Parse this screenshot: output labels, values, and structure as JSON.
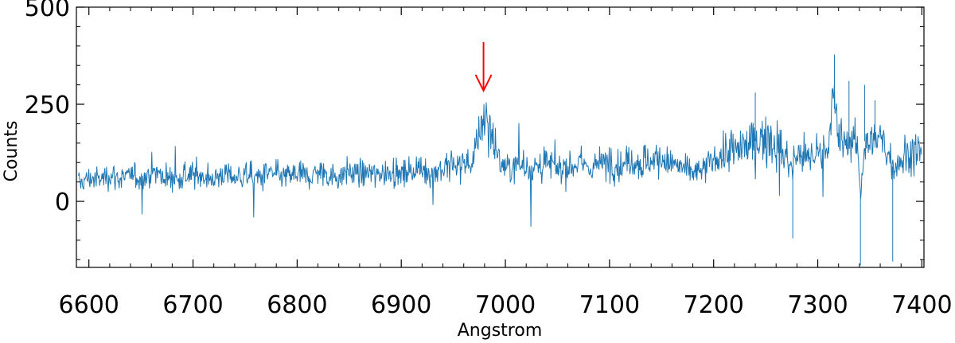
{
  "chart_data": {
    "type": "line",
    "title": "",
    "xlabel": "Angstrom",
    "ylabel": "Counts",
    "xlim": [
      6588,
      7402
    ],
    "ylim": [
      -170,
      500
    ],
    "x_ticks": [
      6600,
      6700,
      6800,
      6900,
      7000,
      7100,
      7200,
      7300,
      7400
    ],
    "x_tick_labels": [
      "6600",
      "6700",
      "6800",
      "6900",
      "7000",
      "7100",
      "7200",
      "7300",
      "7400"
    ],
    "y_ticks": [
      0,
      250,
      500
    ],
    "y_tick_labels": [
      "0",
      "250",
      "500"
    ],
    "grid": false,
    "ticks_direction": "in",
    "series": [
      {
        "color": "#1f77b4",
        "x": [
          6590,
          6600,
          6610,
          6620,
          6630,
          6640,
          6650,
          6660,
          6670,
          6680,
          6690,
          6700,
          6710,
          6720,
          6730,
          6740,
          6750,
          6760,
          6770,
          6780,
          6790,
          6800,
          6810,
          6820,
          6830,
          6840,
          6850,
          6860,
          6870,
          6880,
          6890,
          6900,
          6910,
          6920,
          6930,
          6940,
          6950,
          6960,
          6965,
          6970,
          6973,
          6976,
          6979,
          6982,
          6985,
          6988,
          6992,
          6996,
          7000,
          7010,
          7020,
          7030,
          7040,
          7050,
          7060,
          7070,
          7080,
          7090,
          7100,
          7110,
          7120,
          7130,
          7140,
          7150,
          7160,
          7170,
          7180,
          7190,
          7200,
          7210,
          7220,
          7230,
          7240,
          7250,
          7260,
          7270,
          7276,
          7280,
          7290,
          7300,
          7310,
          7315,
          7320,
          7330,
          7338,
          7341,
          7345,
          7350,
          7360,
          7370,
          7372,
          7380,
          7390,
          7400
        ],
        "y": [
          45,
          60,
          55,
          70,
          58,
          65,
          60,
          72,
          68,
          55,
          62,
          70,
          65,
          58,
          72,
          60,
          66,
          62,
          70,
          68,
          64,
          72,
          66,
          75,
          70,
          62,
          78,
          70,
          74,
          66,
          80,
          72,
          76,
          82,
          78,
          85,
          90,
          95,
          100,
          110,
          140,
          200,
          230,
          210,
          185,
          160,
          120,
          95,
          85,
          92,
          90,
          88,
          98,
          84,
          90,
          100,
          88,
          95,
          105,
          92,
          110,
          98,
          106,
          112,
          96,
          85,
          75,
          78,
          110,
          125,
          130,
          140,
          155,
          160,
          150,
          120,
          80,
          130,
          115,
          125,
          145,
          260,
          150,
          155,
          140,
          20,
          155,
          150,
          160,
          120,
          90,
          110,
          125,
          130
        ]
      }
    ],
    "annotations": [
      {
        "type": "arrow",
        "color": "#ff0000",
        "x": 6979,
        "y_from": 410,
        "y_to": 285
      }
    ]
  }
}
